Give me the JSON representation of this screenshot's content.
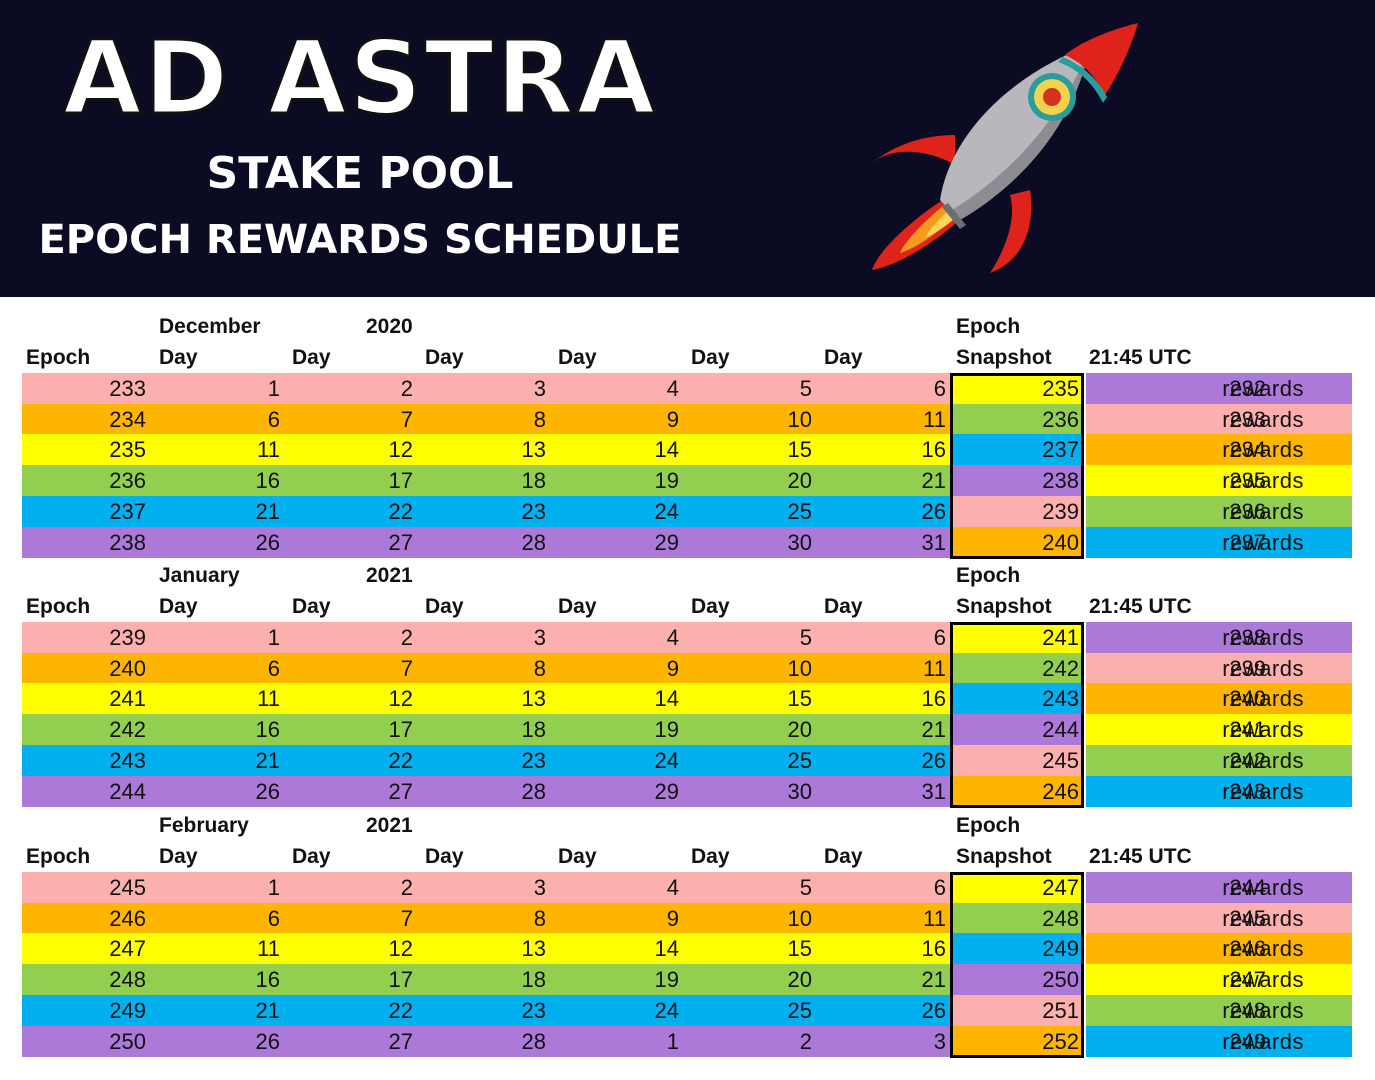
{
  "header": {
    "title": "AD ASTRA",
    "subtitle": "STAKE POOL",
    "heading": "EPOCH REWARDS SCHEDULE"
  },
  "colors": {
    "pink": "#fcb0ae",
    "orange": "#feb500",
    "yellow": "#ffff00",
    "green": "#92cf50",
    "blue": "#00b0ef",
    "purple": "#ac79d9",
    "banner": "#0b0c24"
  },
  "labels": {
    "epoch": "Epoch",
    "day": "Day",
    "snapshot": "Snapshot",
    "time": "21:45 UTC",
    "rewards": "rewards"
  },
  "months": [
    {
      "month": "December",
      "year": "2020",
      "rows": [
        {
          "epoch": "233",
          "days": [
            "1",
            "2",
            "3",
            "4",
            "5",
            "6"
          ],
          "snapshot": "235",
          "reward": "232"
        },
        {
          "epoch": "234",
          "days": [
            "6",
            "7",
            "8",
            "9",
            "10",
            "11"
          ],
          "snapshot": "236",
          "reward": "233"
        },
        {
          "epoch": "235",
          "days": [
            "11",
            "12",
            "13",
            "14",
            "15",
            "16"
          ],
          "snapshot": "237",
          "reward": "234"
        },
        {
          "epoch": "236",
          "days": [
            "16",
            "17",
            "18",
            "19",
            "20",
            "21"
          ],
          "snapshot": "238",
          "reward": "235"
        },
        {
          "epoch": "237",
          "days": [
            "21",
            "22",
            "23",
            "24",
            "25",
            "26"
          ],
          "snapshot": "239",
          "reward": "236"
        },
        {
          "epoch": "238",
          "days": [
            "26",
            "27",
            "28",
            "29",
            "30",
            "31"
          ],
          "snapshot": "240",
          "reward": "237"
        }
      ]
    },
    {
      "month": "January",
      "year": "2021",
      "rows": [
        {
          "epoch": "239",
          "days": [
            "1",
            "2",
            "3",
            "4",
            "5",
            "6"
          ],
          "snapshot": "241",
          "reward": "238"
        },
        {
          "epoch": "240",
          "days": [
            "6",
            "7",
            "8",
            "9",
            "10",
            "11"
          ],
          "snapshot": "242",
          "reward": "239"
        },
        {
          "epoch": "241",
          "days": [
            "11",
            "12",
            "13",
            "14",
            "15",
            "16"
          ],
          "snapshot": "243",
          "reward": "240"
        },
        {
          "epoch": "242",
          "days": [
            "16",
            "17",
            "18",
            "19",
            "20",
            "21"
          ],
          "snapshot": "244",
          "reward": "241"
        },
        {
          "epoch": "243",
          "days": [
            "21",
            "22",
            "23",
            "24",
            "25",
            "26"
          ],
          "snapshot": "245",
          "reward": "242"
        },
        {
          "epoch": "244",
          "days": [
            "26",
            "27",
            "28",
            "29",
            "30",
            "31"
          ],
          "snapshot": "246",
          "reward": "243"
        }
      ]
    },
    {
      "month": "February",
      "year": "2021",
      "rows": [
        {
          "epoch": "245",
          "days": [
            "1",
            "2",
            "3",
            "4",
            "5",
            "6"
          ],
          "snapshot": "247",
          "reward": "244"
        },
        {
          "epoch": "246",
          "days": [
            "6",
            "7",
            "8",
            "9",
            "10",
            "11"
          ],
          "snapshot": "248",
          "reward": "245"
        },
        {
          "epoch": "247",
          "days": [
            "11",
            "12",
            "13",
            "14",
            "15",
            "16"
          ],
          "snapshot": "249",
          "reward": "246"
        },
        {
          "epoch": "248",
          "days": [
            "16",
            "17",
            "18",
            "19",
            "20",
            "21"
          ],
          "snapshot": "250",
          "reward": "247"
        },
        {
          "epoch": "249",
          "days": [
            "21",
            "22",
            "23",
            "24",
            "25",
            "26"
          ],
          "snapshot": "251",
          "reward": "248"
        },
        {
          "epoch": "250",
          "days": [
            "26",
            "27",
            "28",
            "1",
            "2",
            "3"
          ],
          "snapshot": "252",
          "reward": "249"
        }
      ]
    }
  ]
}
